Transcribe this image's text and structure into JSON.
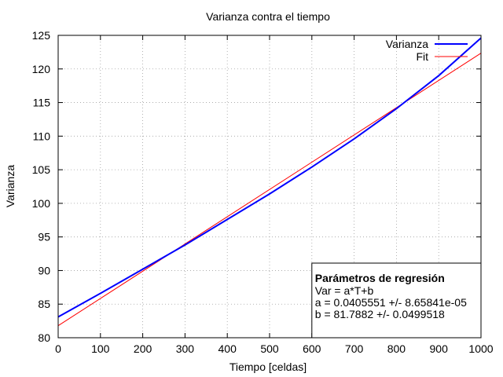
{
  "chart_data": {
    "type": "line",
    "title": "Varianza contra el tiempo",
    "xlabel": "Tiempo [celdas]",
    "ylabel": "Varianza",
    "xlim": [
      0,
      1000
    ],
    "ylim": [
      80,
      125
    ],
    "xticks": [
      0,
      100,
      200,
      300,
      400,
      500,
      600,
      700,
      800,
      900,
      1000
    ],
    "yticks": [
      80,
      85,
      90,
      95,
      100,
      105,
      110,
      115,
      120,
      125
    ],
    "grid": true,
    "legend_position": "top-right",
    "series": [
      {
        "name": "Varianza",
        "color": "#0000ff",
        "x": [
          0,
          100,
          200,
          300,
          400,
          500,
          600,
          700,
          800,
          900,
          1000
        ],
        "y": [
          83.1,
          86.6,
          90.2,
          93.8,
          97.6,
          101.4,
          105.4,
          109.6,
          114.1,
          119.0,
          124.6
        ]
      },
      {
        "name": "Fit",
        "color": "#ff0000",
        "fit": {
          "a": 0.0405551,
          "b": 81.7882
        }
      }
    ],
    "annotation": {
      "title": "Parámetros de regresión",
      "lines": [
        "Var = a*T+b",
        "a = 0.0405551 +/- 8.65841e-05",
        "b = 81.7882 +/- 0.0499518"
      ]
    }
  }
}
